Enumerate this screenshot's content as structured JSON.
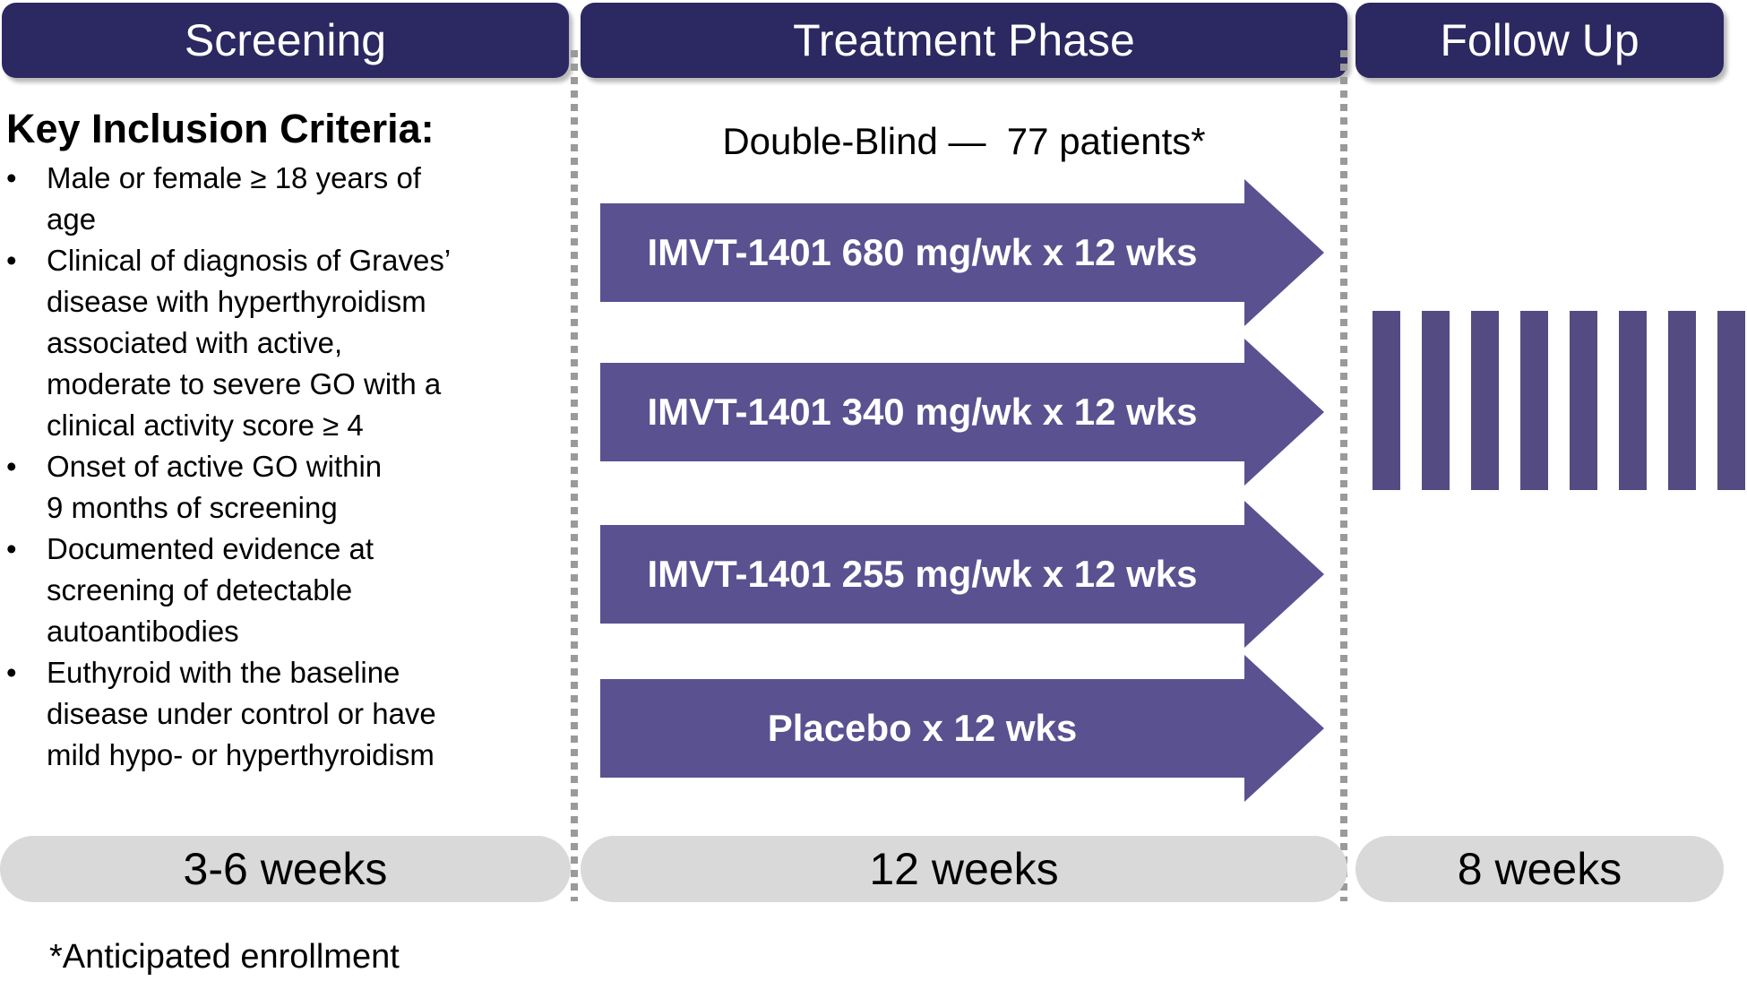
{
  "columns": [
    {
      "header": "Screening",
      "duration": "3-6 weeks"
    },
    {
      "header": "Treatment Phase",
      "duration": "12 weeks"
    },
    {
      "header": "Follow Up",
      "duration": "8 weeks"
    }
  ],
  "screening": {
    "criteria_heading": "Key Inclusion Criteria:",
    "criteria": [
      "Male or female ≥ 18 years of age",
      "Clinical of diagnosis of Graves’ disease with hyperthyroidism associated with active, moderate to severe GO with a clinical activity score ≥ 4",
      "Onset of active GO within\n9 months of screening",
      "Documented evidence at screening of detectable autoantibodies",
      "Euthyroid with the baseline disease under control or have mild hypo- or hyperthyroidism"
    ]
  },
  "treatment": {
    "subtitle": "Double-Blind —  77 patients*",
    "arms": [
      {
        "label": "IMVT-1401 680 mg/wk x 12 wks"
      },
      {
        "label": "IMVT-1401 340 mg/wk x 12 wks"
      },
      {
        "label": "IMVT-1401 255 mg/wk x 12 wks"
      },
      {
        "label": "Placebo x 12 wks"
      }
    ]
  },
  "follow_up": {
    "bar_count": 8
  },
  "footnote": "*Anticipated enrollment",
  "colors": {
    "header_bg": "#2c2861",
    "arrow_bg": "#5a5190",
    "bar_bg": "#554b83",
    "pill_bg": "#d9d9d9",
    "dot_color": "#9a9a9a",
    "text": "#000000",
    "on_dark_text": "#ffffff"
  }
}
